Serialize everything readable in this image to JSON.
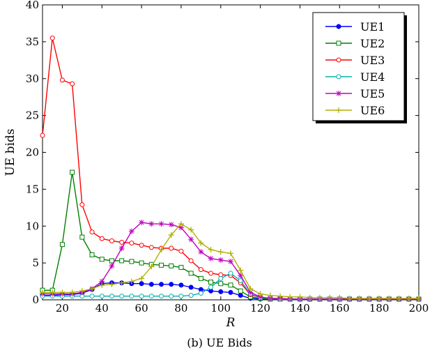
{
  "caption": "(b) UE Bids",
  "chart_data": {
    "type": "line",
    "xlabel": "R",
    "ylabel": "UE bids",
    "xlim": [
      10,
      200
    ],
    "ylim": [
      0,
      40
    ],
    "xticks": [
      20,
      40,
      60,
      80,
      100,
      120,
      140,
      160,
      180,
      200
    ],
    "yticks": [
      0,
      5,
      10,
      15,
      20,
      25,
      30,
      35,
      40
    ],
    "legend_position": "top-right",
    "x": [
      10,
      15,
      20,
      25,
      30,
      35,
      40,
      45,
      50,
      55,
      60,
      65,
      70,
      75,
      80,
      85,
      90,
      95,
      100,
      105,
      110,
      115,
      120,
      125,
      130,
      135,
      140,
      145,
      150,
      155,
      160,
      165,
      170,
      175,
      180,
      185,
      190,
      195,
      200
    ],
    "series": [
      {
        "name": "UE1",
        "color": "#0000ff",
        "marker": "filled-circle",
        "values": [
          0.6,
          0.6,
          0.7,
          0.7,
          0.9,
          1.4,
          2.2,
          2.3,
          2.3,
          2.2,
          2.2,
          2.1,
          2.1,
          2.1,
          2.0,
          1.7,
          1.4,
          1.2,
          1.1,
          1.0,
          0.6,
          0.2,
          0.1,
          0.1,
          0.1,
          0.1,
          0.1,
          0.1,
          0.1,
          0.1,
          0.1,
          0.1,
          0.1,
          0.1,
          0.1,
          0.1,
          0.1,
          0.1,
          0.1
        ]
      },
      {
        "name": "UE2",
        "color": "#008000",
        "marker": "open-square",
        "values": [
          1.3,
          1.3,
          7.5,
          17.3,
          8.5,
          6.1,
          5.5,
          5.3,
          5.3,
          5.2,
          5.0,
          4.8,
          4.7,
          4.6,
          4.4,
          3.6,
          2.9,
          2.4,
          2.2,
          2.0,
          1.2,
          0.4,
          0.2,
          0.1,
          0.1,
          0.1,
          0.1,
          0.1,
          0.1,
          0.1,
          0.1,
          0.1,
          0.1,
          0.1,
          0.1,
          0.1,
          0.1,
          0.1,
          0.1
        ]
      },
      {
        "name": "UE3",
        "color": "#ff0000",
        "marker": "open-circle",
        "values": [
          22.3,
          35.5,
          29.8,
          29.3,
          12.9,
          9.2,
          8.3,
          8.0,
          7.8,
          7.7,
          7.4,
          7.1,
          7.0,
          7.0,
          6.6,
          5.3,
          4.1,
          3.6,
          3.4,
          3.3,
          2.3,
          0.7,
          0.3,
          0.2,
          0.2,
          0.1,
          0.1,
          0.1,
          0.1,
          0.1,
          0.1,
          0.1,
          0.1,
          0.1,
          0.1,
          0.1,
          0.1,
          0.1,
          0.1
        ]
      },
      {
        "name": "UE4",
        "color": "#00b0b0",
        "marker": "open-circle",
        "values": [
          0.5,
          0.5,
          0.5,
          0.5,
          0.5,
          0.5,
          0.5,
          0.5,
          0.5,
          0.5,
          0.5,
          0.5,
          0.5,
          0.5,
          0.5,
          0.6,
          0.9,
          1.7,
          2.9,
          3.6,
          2.6,
          0.8,
          0.3,
          0.2,
          0.1,
          0.1,
          0.1,
          0.1,
          0.1,
          0.1,
          0.1,
          0.1,
          0.1,
          0.1,
          0.1,
          0.1,
          0.1,
          0.1,
          0.1
        ]
      },
      {
        "name": "UE5",
        "color": "#c000c0",
        "marker": "star",
        "values": [
          0.8,
          0.8,
          0.8,
          0.8,
          1.0,
          1.5,
          2.5,
          4.6,
          7.0,
          9.3,
          10.5,
          10.3,
          10.3,
          10.2,
          9.8,
          8.2,
          6.5,
          5.6,
          5.4,
          5.2,
          3.3,
          1.0,
          0.4,
          0.2,
          0.2,
          0.1,
          0.1,
          0.1,
          0.1,
          0.1,
          0.1,
          0.1,
          0.1,
          0.1,
          0.1,
          0.1,
          0.1,
          0.1,
          0.1
        ]
      },
      {
        "name": "UE6",
        "color": "#b0b000",
        "marker": "plus",
        "values": [
          1.0,
          1.0,
          1.0,
          1.0,
          1.2,
          1.5,
          2.0,
          2.1,
          2.3,
          2.5,
          2.9,
          4.5,
          6.8,
          8.8,
          10.3,
          9.5,
          7.7,
          6.8,
          6.5,
          6.3,
          4.0,
          1.5,
          0.8,
          0.6,
          0.5,
          0.4,
          0.4,
          0.3,
          0.3,
          0.3,
          0.3,
          0.2,
          0.2,
          0.2,
          0.2,
          0.2,
          0.2,
          0.2,
          0.2
        ]
      }
    ]
  }
}
